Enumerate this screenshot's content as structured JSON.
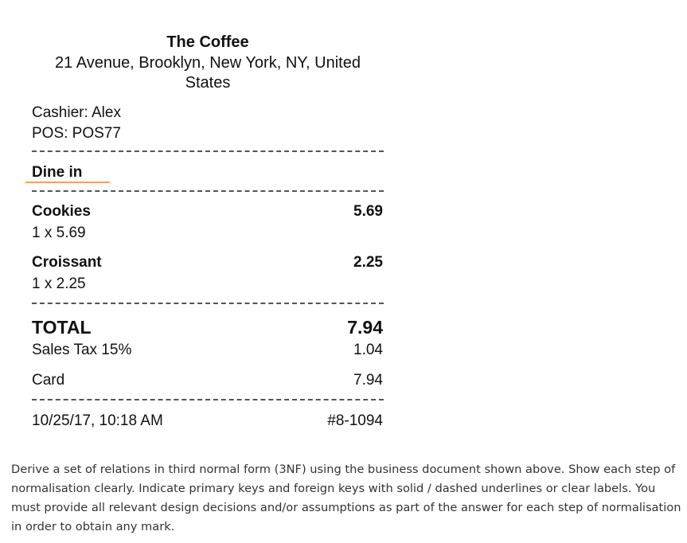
{
  "receipt": {
    "store_name": "The Coffee",
    "store_address": "21 Avenue, Brooklyn, New York, NY, United States",
    "cashier": "Cashier: Alex",
    "pos": "POS: POS77",
    "order_type": "Dine in",
    "items": [
      {
        "name": "Cookies",
        "qty_line": "1 x 5.69",
        "amount": "5.69"
      },
      {
        "name": "Croissant",
        "qty_line": "1 x 2.25",
        "amount": "2.25"
      }
    ],
    "total_label": "TOTAL",
    "total_value": "7.94",
    "tax_label": "Sales Tax 15%",
    "tax_value": "1.04",
    "payment_label": "Card",
    "payment_value": "7.94",
    "datetime": "10/25/17, 10:18 AM",
    "receipt_number": "#8-1094"
  },
  "question": "Derive a set of relations in third normal form (3NF) using the business document shown above. Show each step of normalisation clearly. Indicate primary keys and foreign keys with solid / dashed underlines or clear labels. You must provide all relevant design decisions and/or assumptions as part of the answer for each step of normalisation in order to obtain any mark."
}
